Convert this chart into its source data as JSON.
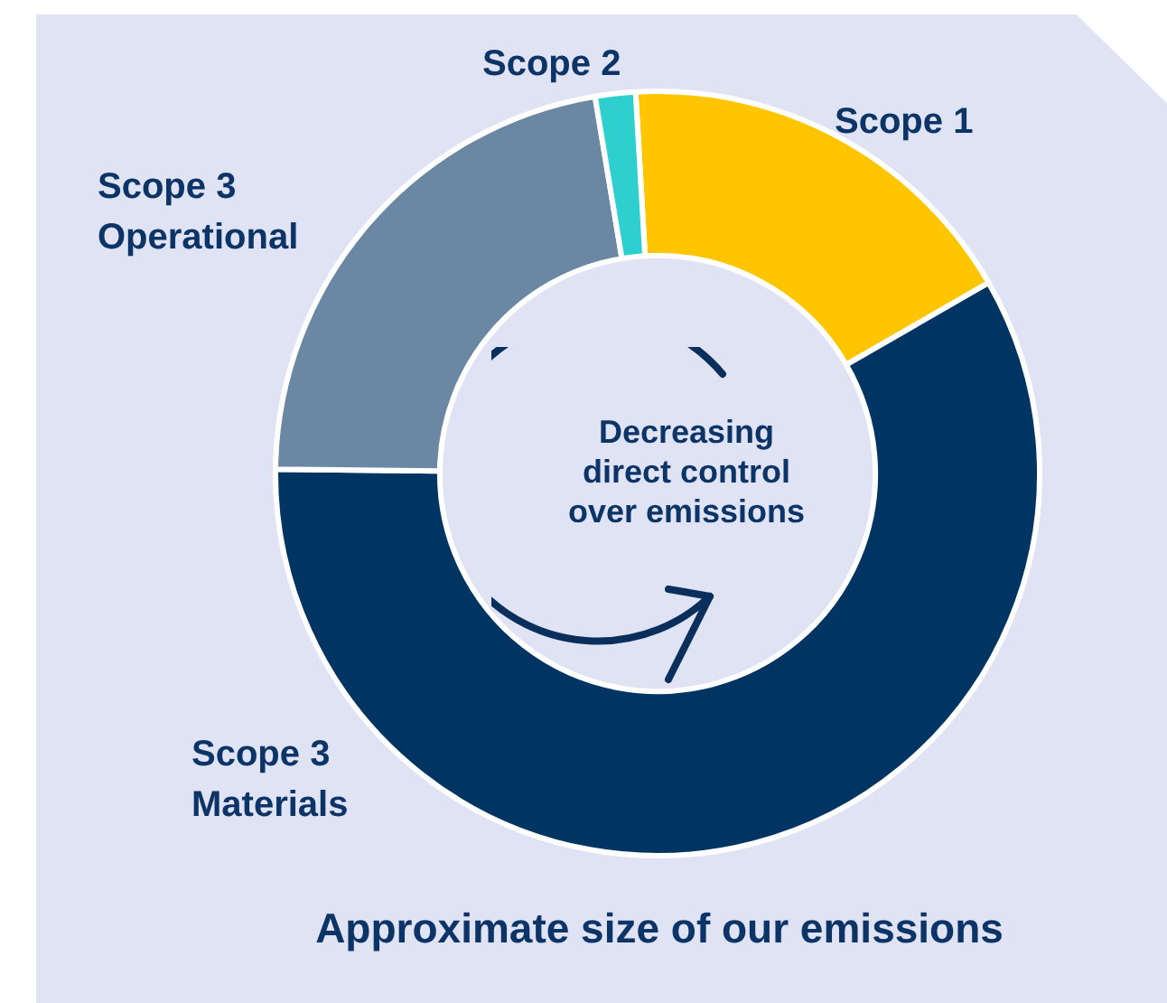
{
  "chart_data": {
    "type": "donut",
    "title": "Approximate size of our emissions",
    "categories": [
      "Scope 1",
      "Scope 3 Materials",
      "Scope 3 Operational",
      "Scope 2"
    ],
    "values": [
      17.6,
      58.5,
      22.2,
      1.7
    ],
    "colors": [
      "#ffc600",
      "#003462",
      "#6a87a3",
      "#2ecfcf"
    ],
    "annotations": [
      "Decreasing direct control over emissions"
    ],
    "legend": false
  }
}
